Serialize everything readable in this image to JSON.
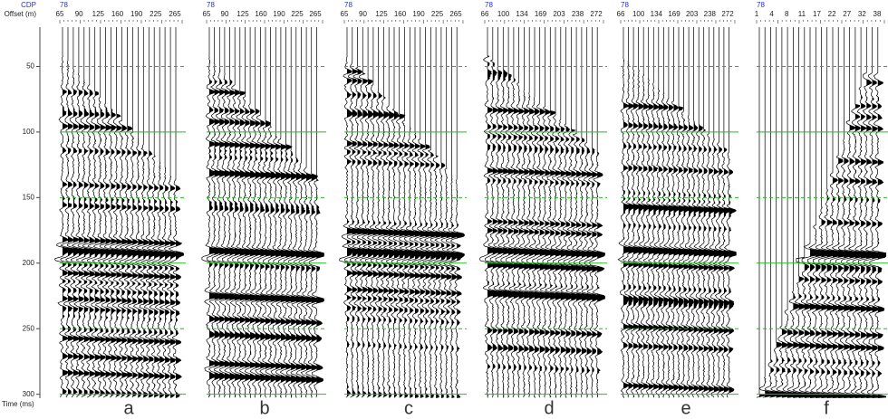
{
  "header": {
    "cdp_label": "CDP",
    "offset_label": "Offset (m)"
  },
  "time_axis": {
    "label": "Time (ms)",
    "lim": [
      20,
      303
    ],
    "ticks": [
      50,
      100,
      150,
      200,
      250,
      300
    ],
    "grid": true,
    "grid_color": "#22bb22"
  },
  "panels": [
    {
      "label": "a",
      "cdp": 78,
      "offsets": [
        65,
        90,
        125,
        160,
        190,
        225,
        265
      ]
    },
    {
      "label": "b",
      "cdp": 78,
      "offsets": [
        65,
        90,
        125,
        160,
        190,
        225,
        265
      ]
    },
    {
      "label": "c",
      "cdp": 78,
      "offsets": [
        65,
        90,
        125,
        160,
        190,
        225,
        265
      ]
    },
    {
      "label": "d",
      "cdp": 78,
      "offsets": [
        66,
        100,
        134,
        169,
        203,
        238,
        272
      ]
    },
    {
      "label": "e",
      "cdp": 78,
      "offsets": [
        66,
        100,
        134,
        169,
        203,
        238,
        272
      ]
    },
    {
      "label": "f",
      "cdp": 78,
      "offsets": [
        1,
        4,
        8,
        11,
        17,
        22,
        27,
        32,
        38
      ]
    }
  ]
}
